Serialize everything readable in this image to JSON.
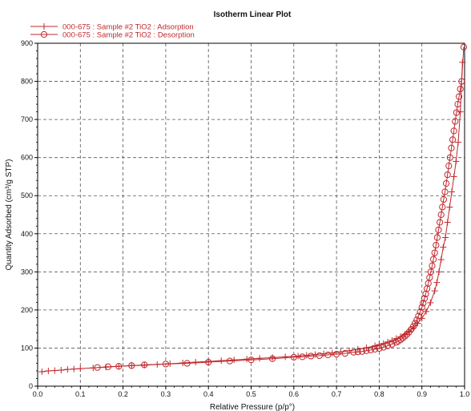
{
  "chart_data": {
    "type": "line",
    "title": "Isotherm Linear Plot",
    "xlabel": "Relative Pressure (p/p°)",
    "ylabel": "Quantity Adsorbed (cm³/g STP)",
    "xlim": [
      0.0,
      1.0
    ],
    "ylim": [
      0,
      900
    ],
    "xticks": [
      "0.0",
      "0.1",
      "0.2",
      "0.3",
      "0.4",
      "0.5",
      "0.6",
      "0.7",
      "0.8",
      "0.9",
      "1.0"
    ],
    "yticks": [
      "0",
      "100",
      "200",
      "300",
      "400",
      "500",
      "600",
      "700",
      "800",
      "900"
    ],
    "grid": true,
    "legend_position": "top-left",
    "colors": {
      "series": "#c0282d",
      "grid": "#555555",
      "axis": "#000000"
    },
    "series": [
      {
        "name": "000-675 : Sample #2 TiO2 : Adsorption",
        "marker": "plus",
        "x": [
          0.01,
          0.025,
          0.04,
          0.055,
          0.07,
          0.085,
          0.1,
          0.13,
          0.16,
          0.19,
          0.22,
          0.25,
          0.28,
          0.31,
          0.34,
          0.37,
          0.4,
          0.43,
          0.46,
          0.49,
          0.52,
          0.55,
          0.58,
          0.61,
          0.63,
          0.65,
          0.67,
          0.69,
          0.71,
          0.73,
          0.75,
          0.77,
          0.79,
          0.8,
          0.81,
          0.82,
          0.83,
          0.84,
          0.85,
          0.86,
          0.87,
          0.88,
          0.89,
          0.9,
          0.91,
          0.92,
          0.93,
          0.935,
          0.94,
          0.945,
          0.95,
          0.955,
          0.96,
          0.965,
          0.97,
          0.975,
          0.98,
          0.985,
          0.99,
          0.995
        ],
        "y": [
          38,
          40,
          41,
          42,
          44,
          45,
          46,
          48,
          50,
          52,
          54,
          55,
          57,
          59,
          61,
          63,
          65,
          67,
          69,
          71,
          73,
          75,
          77,
          79,
          81,
          83,
          85,
          87,
          90,
          93,
          97,
          101,
          106,
          109,
          112,
          116,
          120,
          125,
          130,
          136,
          144,
          153,
          165,
          178,
          196,
          219,
          250,
          272,
          300,
          332,
          365,
          390,
          430,
          470,
          510,
          550,
          590,
          640,
          720,
          850
        ]
      },
      {
        "name": "000-675 : Sample #2 TiO2 : Desorption",
        "marker": "circle",
        "x": [
          0.998,
          0.993,
          0.99,
          0.987,
          0.984,
          0.981,
          0.978,
          0.975,
          0.972,
          0.969,
          0.966,
          0.963,
          0.96,
          0.957,
          0.954,
          0.951,
          0.948,
          0.945,
          0.942,
          0.939,
          0.936,
          0.933,
          0.93,
          0.927,
          0.924,
          0.921,
          0.918,
          0.915,
          0.912,
          0.909,
          0.906,
          0.903,
          0.9,
          0.896,
          0.892,
          0.888,
          0.884,
          0.88,
          0.875,
          0.87,
          0.865,
          0.86,
          0.855,
          0.85,
          0.845,
          0.84,
          0.83,
          0.82,
          0.81,
          0.8,
          0.79,
          0.78,
          0.77,
          0.76,
          0.75,
          0.74,
          0.72,
          0.7,
          0.68,
          0.66,
          0.64,
          0.62,
          0.6,
          0.55,
          0.5,
          0.45,
          0.4,
          0.35,
          0.3,
          0.25,
          0.22,
          0.19,
          0.165,
          0.14
        ],
        "y": [
          890,
          800,
          780,
          760,
          740,
          718,
          695,
          670,
          647,
          625,
          600,
          578,
          555,
          532,
          510,
          490,
          470,
          450,
          430,
          410,
          390,
          370,
          350,
          333,
          316,
          300,
          285,
          270,
          256,
          242,
          230,
          218,
          207,
          195,
          184,
          174,
          165,
          157,
          149,
          142,
          136,
          131,
          126,
          122,
          118,
          115,
          110,
          106,
          102,
          99,
          97,
          95,
          93,
          91,
          90,
          89,
          86,
          84,
          82,
          80,
          79,
          77,
          76,
          72,
          69,
          66,
          63,
          60,
          58,
          56,
          54,
          52,
          51,
          49
        ]
      }
    ]
  }
}
